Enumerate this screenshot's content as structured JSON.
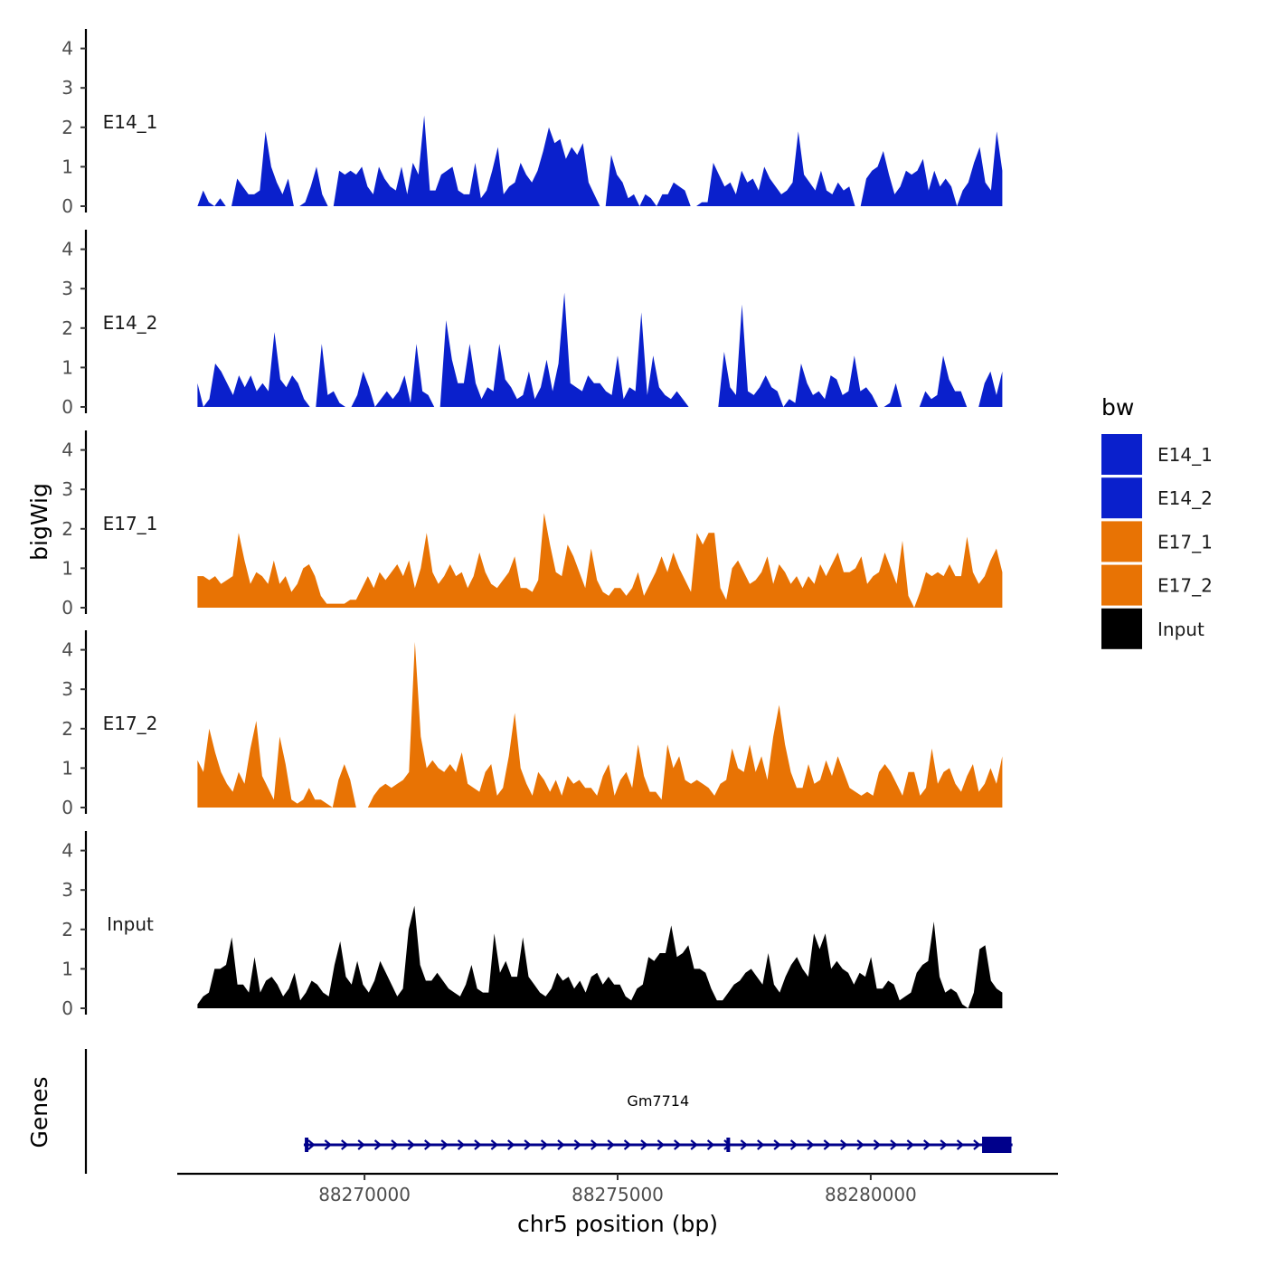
{
  "chart_data": {
    "type": "area",
    "title": "",
    "ylabel": "bigWig",
    "xlabel": "chr5 position (bp)",
    "xlim": [
      88266300,
      88283700
    ],
    "x_ticks": [
      88270000,
      88275000,
      88280000
    ],
    "x_tick_labels": [
      "88270000",
      "88275000",
      "88280000"
    ],
    "ylim": [
      0,
      4.5
    ],
    "y_ticks": [
      0,
      1,
      2,
      3,
      4
    ],
    "y_tick_labels": [
      "0",
      "1",
      "2",
      "3",
      "4"
    ],
    "series_start": 88266700,
    "series_end": 88282600,
    "series": [
      {
        "name": "E14_1",
        "color": "#0A20CC",
        "values": [
          0,
          0.4,
          0.1,
          0,
          0.2,
          0,
          0,
          0.7,
          0.5,
          0.3,
          0.3,
          0.4,
          1.9,
          1.0,
          0.6,
          0.3,
          0.7,
          0,
          0,
          0.1,
          0.5,
          1.0,
          0.3,
          0,
          0,
          0.9,
          0.8,
          0.9,
          0.8,
          1.0,
          0.5,
          0.3,
          1.0,
          0.7,
          0.5,
          0.4,
          1.0,
          0.3,
          1.1,
          0.8,
          2.3,
          0.4,
          0.4,
          0.8,
          0.9,
          1.0,
          0.4,
          0.3,
          0.3,
          1.1,
          0.2,
          0.4,
          0.9,
          1.5,
          0.3,
          0.5,
          0.6,
          1.1,
          0.8,
          0.6,
          0.9,
          1.4,
          2.0,
          1.6,
          1.7,
          1.2,
          1.5,
          1.3,
          1.6,
          0.6,
          0.3,
          0,
          0,
          1.3,
          0.8,
          0.6,
          0.2,
          0.3,
          0,
          0.3,
          0.2,
          0,
          0.3,
          0.3,
          0.6,
          0.5,
          0.4,
          0,
          0,
          0.1,
          0.1,
          1.1,
          0.8,
          0.5,
          0.6,
          0.3,
          0.9,
          0.6,
          0.7,
          0.4,
          1.0,
          0.7,
          0.5,
          0.3,
          0.4,
          0.6,
          1.9,
          0.8,
          0.6,
          0.4,
          0.9,
          0.4,
          0.3,
          0.6,
          0.4,
          0.5,
          0,
          0,
          0.7,
          0.9,
          1.0,
          1.4,
          0.8,
          0.3,
          0.5,
          0.9,
          0.8,
          0.9,
          1.2,
          0.4,
          0.9,
          0.5,
          0.7,
          0.5,
          0,
          0.4,
          0.6,
          1.1,
          1.5,
          0.6,
          0.4,
          1.9,
          0.9
        ]
      },
      {
        "name": "E14_2",
        "color": "#0A20CC",
        "values": [
          0.6,
          0,
          0.2,
          1.1,
          0.9,
          0.6,
          0.3,
          0.8,
          0.5,
          0.8,
          0.4,
          0.6,
          0.4,
          1.9,
          0.7,
          0.5,
          0.8,
          0.6,
          0.2,
          0,
          0,
          1.6,
          0.3,
          0.4,
          0.1,
          0,
          0,
          0.3,
          0.9,
          0.5,
          0,
          0.2,
          0.4,
          0.2,
          0.4,
          0.8,
          0.1,
          1.6,
          0.4,
          0.3,
          0,
          0,
          2.2,
          1.2,
          0.6,
          0.6,
          1.6,
          0.6,
          0.2,
          0.5,
          0.4,
          1.6,
          0.7,
          0.5,
          0.2,
          0.3,
          0.9,
          0.2,
          0.5,
          1.2,
          0.4,
          1.1,
          2.9,
          0.6,
          0.5,
          0.4,
          0.8,
          0.6,
          0.6,
          0.4,
          0.3,
          1.3,
          0.2,
          0.5,
          0.4,
          2.4,
          0.3,
          1.3,
          0.5,
          0.3,
          0.2,
          0.4,
          0.2,
          0,
          0,
          0,
          0,
          0,
          0,
          1.4,
          0.5,
          0.3,
          2.6,
          0.4,
          0.3,
          0.5,
          0.8,
          0.5,
          0.4,
          0,
          0.2,
          0.1,
          1.1,
          0.6,
          0.3,
          0.4,
          0.2,
          0.8,
          0.7,
          0.3,
          0.4,
          1.3,
          0.4,
          0.5,
          0.3,
          0,
          0,
          0.1,
          0.6,
          0,
          0,
          0,
          0,
          0.4,
          0.2,
          0.3,
          1.3,
          0.7,
          0.4,
          0.4,
          0,
          0,
          0,
          0.6,
          0.9,
          0.3,
          0.9
        ]
      },
      {
        "name": "E17_1",
        "color": "#E87304",
        "values": [
          0.8,
          0.8,
          0.7,
          0.8,
          0.6,
          0.7,
          0.8,
          1.9,
          1.2,
          0.6,
          0.9,
          0.8,
          0.6,
          1.2,
          0.6,
          0.8,
          0.4,
          0.6,
          1.0,
          1.1,
          0.8,
          0.3,
          0.1,
          0.1,
          0.1,
          0.1,
          0.2,
          0.2,
          0.5,
          0.8,
          0.5,
          0.9,
          0.7,
          0.9,
          1.1,
          0.8,
          1.2,
          0.5,
          1.0,
          1.9,
          0.9,
          0.6,
          0.8,
          1.1,
          0.8,
          0.9,
          0.5,
          0.8,
          1.4,
          0.9,
          0.6,
          0.5,
          0.7,
          0.9,
          1.3,
          0.5,
          0.5,
          0.4,
          0.7,
          2.4,
          1.6,
          0.9,
          0.8,
          1.6,
          1.3,
          0.9,
          0.5,
          1.5,
          0.7,
          0.4,
          0.3,
          0.5,
          0.5,
          0.3,
          0.5,
          0.9,
          0.3,
          0.6,
          0.9,
          1.3,
          0.9,
          1.4,
          1.0,
          0.7,
          0.4,
          1.9,
          1.6,
          1.9,
          1.9,
          0.5,
          0.2,
          1.0,
          1.2,
          0.9,
          0.6,
          0.7,
          0.9,
          1.3,
          0.6,
          1.1,
          0.9,
          0.6,
          0.8,
          0.5,
          0.8,
          0.6,
          1.1,
          0.8,
          1.1,
          1.4,
          0.9,
          0.9,
          1.0,
          1.3,
          0.6,
          0.8,
          0.9,
          1.4,
          1.0,
          0.6,
          1.7,
          0.3,
          0,
          0.4,
          0.9,
          0.8,
          0.9,
          0.8,
          1.1,
          0.8,
          0.8,
          1.8,
          0.9,
          0.6,
          0.8,
          1.2,
          1.5,
          0.9
        ]
      },
      {
        "name": "E17_2",
        "color": "#E87304",
        "values": [
          1.2,
          0.9,
          2.0,
          1.4,
          0.9,
          0.6,
          0.4,
          0.9,
          0.6,
          1.5,
          2.2,
          0.8,
          0.5,
          0.2,
          1.8,
          1.1,
          0.2,
          0.1,
          0.2,
          0.5,
          0.2,
          0.2,
          0.1,
          0,
          0.7,
          1.1,
          0.7,
          0,
          0,
          0,
          0.3,
          0.5,
          0.6,
          0.5,
          0.6,
          0.7,
          0.9,
          4.2,
          1.8,
          1.0,
          1.2,
          1.0,
          0.9,
          1.1,
          0.9,
          1.4,
          0.6,
          0.5,
          0.4,
          0.9,
          1.1,
          0.3,
          0.5,
          1.3,
          2.4,
          1.0,
          0.6,
          0.3,
          0.9,
          0.7,
          0.4,
          0.7,
          0.3,
          0.8,
          0.6,
          0.7,
          0.5,
          0.5,
          0.3,
          0.8,
          1.1,
          0.3,
          0.7,
          0.9,
          0.5,
          1.6,
          0.8,
          0.4,
          0.4,
          0.2,
          1.6,
          1.0,
          1.3,
          0.7,
          0.6,
          0.7,
          0.6,
          0.5,
          0.3,
          0.6,
          0.7,
          1.5,
          1.0,
          0.9,
          1.6,
          0.9,
          1.3,
          0.7,
          1.8,
          2.6,
          1.6,
          0.9,
          0.5,
          0.5,
          1.1,
          0.6,
          0.7,
          1.2,
          0.8,
          1.3,
          0.9,
          0.5,
          0.4,
          0.3,
          0.4,
          0.3,
          0.9,
          1.1,
          0.9,
          0.6,
          0.3,
          0.9,
          0.9,
          0.3,
          0.5,
          1.5,
          0.6,
          0.9,
          1.0,
          0.6,
          0.4,
          0.8,
          1.1,
          0.4,
          0.6,
          1.0,
          0.6,
          1.3
        ]
      },
      {
        "name": "Input",
        "color": "#000000",
        "values": [
          0.1,
          0.3,
          0.4,
          1.0,
          1.0,
          1.1,
          1.8,
          0.6,
          0.6,
          0.4,
          1.3,
          0.4,
          0.7,
          0.8,
          0.6,
          0.3,
          0.5,
          0.9,
          0.2,
          0.4,
          0.7,
          0.6,
          0.4,
          0.3,
          1.1,
          1.7,
          0.8,
          0.6,
          1.2,
          0.6,
          0.4,
          0.7,
          1.2,
          0.9,
          0.6,
          0.3,
          0.5,
          2.0,
          2.6,
          1.1,
          0.7,
          0.7,
          0.9,
          0.7,
          0.5,
          0.4,
          0.3,
          0.6,
          1.1,
          0.5,
          0.4,
          0.4,
          1.9,
          0.9,
          1.2,
          0.8,
          0.8,
          1.8,
          0.8,
          0.6,
          0.4,
          0.3,
          0.5,
          0.9,
          0.7,
          0.8,
          0.5,
          0.7,
          0.4,
          0.8,
          0.9,
          0.6,
          0.8,
          0.6,
          0.6,
          0.3,
          0.2,
          0.5,
          0.6,
          1.3,
          1.2,
          1.4,
          1.4,
          2.1,
          1.3,
          1.4,
          1.6,
          1.0,
          1.0,
          0.9,
          0.5,
          0.2,
          0.2,
          0.4,
          0.6,
          0.7,
          0.9,
          1.0,
          0.8,
          0.6,
          1.4,
          0.6,
          0.4,
          0.8,
          1.1,
          1.3,
          1.0,
          0.8,
          1.9,
          1.5,
          1.9,
          1.0,
          1.2,
          1.0,
          0.9,
          0.6,
          0.9,
          0.8,
          1.3,
          0.5,
          0.5,
          0.7,
          0.6,
          0.2,
          0.3,
          0.4,
          0.9,
          1.1,
          1.2,
          2.2,
          0.8,
          0.4,
          0.5,
          0.4,
          0.1,
          0,
          0.4,
          1.5,
          1.6,
          0.7,
          0.5,
          0.4
        ]
      }
    ],
    "legend": {
      "title": "bw",
      "position": "right",
      "entries": [
        "E14_1",
        "E14_2",
        "E17_1",
        "E17_2",
        "Input"
      ]
    },
    "genes_track": {
      "title": "Genes",
      "color": "#00008B",
      "genes": [
        {
          "name": "Gm7714",
          "start": 88268800,
          "end": 88282800,
          "strand": "+",
          "exons": [
            [
              88268820,
              88268880
            ],
            [
              88277150,
              88277200
            ],
            [
              88282200,
              88282780
            ]
          ]
        }
      ]
    }
  }
}
